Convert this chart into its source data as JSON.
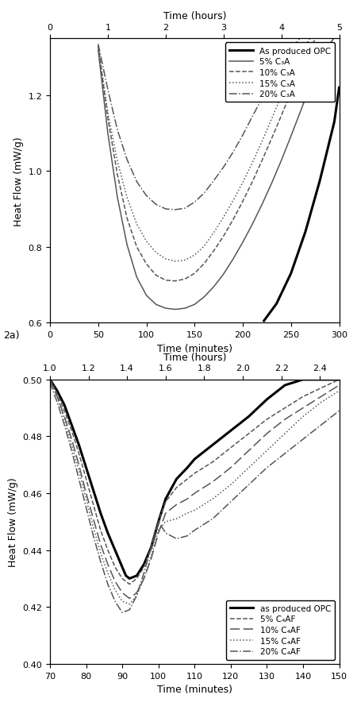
{
  "plot_a": {
    "title_top": "Time (hours)",
    "xlabel": "Time (minutes)",
    "ylabel": "Heat Flow (mW/g)",
    "xlim": [
      0,
      300
    ],
    "ylim": [
      0.6,
      1.35
    ],
    "xticks_bottom": [
      0,
      50,
      100,
      150,
      200,
      250,
      300
    ],
    "xticks_top": [
      0,
      1,
      2,
      3,
      4,
      5
    ],
    "yticks": [
      0.6,
      0.8,
      1.0,
      1.2
    ],
    "curves": [
      {
        "label": "As produced OPC",
        "color": "black",
        "lw": 2.2,
        "ls": "-",
        "x": [
          222,
          235,
          250,
          265,
          280,
          295,
          300
        ],
        "y": [
          0.605,
          0.65,
          0.73,
          0.84,
          0.975,
          1.13,
          1.22
        ]
      },
      {
        "label": "5% C₃A",
        "color": "#555555",
        "lw": 1.1,
        "ls": "-",
        "x": [
          50,
          60,
          70,
          80,
          90,
          100,
          110,
          120,
          130,
          140,
          150,
          160,
          170,
          180,
          190,
          200,
          210,
          220,
          230,
          240,
          250,
          260,
          270,
          280,
          290,
          300
        ],
        "y": [
          1.32,
          1.1,
          0.93,
          0.805,
          0.72,
          0.672,
          0.648,
          0.638,
          0.635,
          0.638,
          0.648,
          0.668,
          0.695,
          0.728,
          0.768,
          0.812,
          0.86,
          0.912,
          0.968,
          1.028,
          1.092,
          1.158,
          1.225,
          1.288,
          1.335,
          1.368
        ]
      },
      {
        "label": "10% C₃A",
        "color": "#555555",
        "lw": 1.1,
        "ls": "--",
        "x": [
          50,
          60,
          70,
          80,
          90,
          100,
          110,
          120,
          130,
          140,
          150,
          160,
          170,
          180,
          190,
          200,
          210,
          220,
          230,
          240,
          250,
          260,
          270,
          280,
          290,
          300
        ],
        "y": [
          1.33,
          1.14,
          0.99,
          0.875,
          0.8,
          0.755,
          0.725,
          0.712,
          0.71,
          0.715,
          0.73,
          0.756,
          0.79,
          0.828,
          0.872,
          0.92,
          0.972,
          1.028,
          1.086,
          1.146,
          1.208,
          1.268,
          1.325,
          1.368,
          1.375,
          1.375
        ]
      },
      {
        "label": "15% C₃A",
        "color": "#555555",
        "lw": 1.1,
        "ls": ":",
        "x": [
          50,
          60,
          70,
          80,
          90,
          100,
          110,
          120,
          130,
          140,
          150,
          160,
          170,
          180,
          190,
          200,
          210,
          220,
          230,
          240,
          250,
          260,
          270,
          280,
          290,
          300
        ],
        "y": [
          1.33,
          1.155,
          1.025,
          0.93,
          0.86,
          0.815,
          0.785,
          0.768,
          0.762,
          0.765,
          0.778,
          0.802,
          0.838,
          0.878,
          0.922,
          0.97,
          1.022,
          1.078,
          1.138,
          1.198,
          1.256,
          1.308,
          1.352,
          1.37,
          1.375,
          1.375
        ]
      },
      {
        "label": "20% C₃A",
        "color": "#555555",
        "lw": 1.1,
        "ls": "-.",
        "x": [
          50,
          60,
          70,
          80,
          90,
          100,
          110,
          120,
          130,
          140,
          150,
          160,
          170,
          180,
          190,
          200,
          210,
          220,
          230,
          240,
          250,
          260,
          270,
          280,
          290,
          300
        ],
        "y": [
          1.335,
          1.215,
          1.108,
          1.03,
          0.972,
          0.935,
          0.912,
          0.9,
          0.898,
          0.902,
          0.918,
          0.942,
          0.975,
          1.01,
          1.05,
          1.095,
          1.144,
          1.192,
          1.24,
          1.284,
          1.322,
          1.352,
          1.368,
          1.375,
          1.375,
          1.375
        ]
      }
    ],
    "legend": {
      "entries": [
        {
          "label": "As produced OPC",
          "color": "black",
          "lw": 2.2,
          "ls": "-",
          "ls_tuple": null
        },
        {
          "label": "5% C₃A",
          "color": "#555555",
          "lw": 1.1,
          "ls": "-",
          "ls_tuple": null
        },
        {
          "label": "10% C₃A",
          "color": "#555555",
          "lw": 1.1,
          "ls": "--",
          "ls_tuple": null
        },
        {
          "label": "15% C₃A",
          "color": "#555555",
          "lw": 1.1,
          "ls": ":",
          "ls_tuple": null
        },
        {
          "label": "20% C₃A",
          "color": "#555555",
          "lw": 1.1,
          "ls": "-.",
          "ls_tuple": null
        }
      ]
    }
  },
  "plot_b": {
    "title_top": "Time (hours)",
    "xlabel": "Time (minutes)",
    "ylabel": "Heat Flow (mW/g)",
    "xlim": [
      70,
      150
    ],
    "ylim": [
      0.4,
      0.5
    ],
    "xticks_bottom": [
      70,
      80,
      90,
      100,
      110,
      120,
      130,
      140,
      150
    ],
    "xticks_top_vals": [
      1.0,
      1.2,
      1.4,
      1.6,
      1.8,
      2.0,
      2.2,
      2.4
    ],
    "yticks": [
      0.4,
      0.42,
      0.44,
      0.46,
      0.48,
      0.5
    ],
    "curves": [
      {
        "label": "as produced OPC",
        "color": "black",
        "lw": 2.2,
        "ls": "-",
        "x": [
          70,
          72,
          74,
          76,
          78,
          80,
          82,
          84,
          86,
          88,
          90,
          91,
          92,
          94,
          96,
          98,
          100,
          102,
          105,
          108,
          110,
          115,
          120,
          125,
          130,
          135,
          140,
          145,
          150
        ],
        "y": [
          0.5,
          0.496,
          0.491,
          0.484,
          0.477,
          0.469,
          0.461,
          0.453,
          0.446,
          0.44,
          0.434,
          0.431,
          0.43,
          0.431,
          0.435,
          0.441,
          0.45,
          0.458,
          0.465,
          0.469,
          0.472,
          0.477,
          0.482,
          0.487,
          0.493,
          0.498,
          0.5,
          0.5,
          0.5
        ]
      },
      {
        "label": "5% C₄AF",
        "color": "#555555",
        "lw": 1.1,
        "ls": "--",
        "x": [
          70,
          72,
          74,
          76,
          78,
          80,
          82,
          84,
          86,
          88,
          90,
          92,
          94,
          96,
          98,
          100,
          102,
          105,
          108,
          110,
          115,
          120,
          125,
          130,
          135,
          140,
          145,
          150
        ],
        "y": [
          0.5,
          0.495,
          0.489,
          0.482,
          0.474,
          0.465,
          0.456,
          0.447,
          0.44,
          0.434,
          0.43,
          0.428,
          0.43,
          0.434,
          0.441,
          0.45,
          0.457,
          0.462,
          0.465,
          0.467,
          0.471,
          0.476,
          0.481,
          0.486,
          0.49,
          0.494,
          0.497,
          0.5
        ]
      },
      {
        "label": "10% C₄AF",
        "color": "#555555",
        "lw": 1.1,
        "ls": "--",
        "x": [
          70,
          72,
          74,
          76,
          78,
          80,
          82,
          84,
          86,
          88,
          90,
          92,
          94,
          96,
          98,
          100,
          102,
          105,
          108,
          110,
          115,
          120,
          125,
          130,
          135,
          140,
          145,
          150
        ],
        "y": [
          0.5,
          0.494,
          0.487,
          0.479,
          0.47,
          0.46,
          0.451,
          0.442,
          0.435,
          0.429,
          0.425,
          0.423,
          0.425,
          0.43,
          0.437,
          0.446,
          0.453,
          0.456,
          0.458,
          0.46,
          0.464,
          0.469,
          0.475,
          0.481,
          0.486,
          0.49,
          0.494,
          0.498
        ]
      },
      {
        "label": "15% C₄AF",
        "color": "#555555",
        "lw": 1.1,
        "ls": ":",
        "x": [
          70,
          72,
          74,
          76,
          78,
          80,
          82,
          84,
          86,
          88,
          90,
          92,
          94,
          96,
          98,
          100,
          102,
          105,
          108,
          110,
          115,
          120,
          125,
          130,
          135,
          140,
          145,
          150
        ],
        "y": [
          0.5,
          0.494,
          0.486,
          0.477,
          0.468,
          0.458,
          0.448,
          0.439,
          0.432,
          0.426,
          0.422,
          0.421,
          0.424,
          0.43,
          0.438,
          0.447,
          0.45,
          0.451,
          0.453,
          0.454,
          0.458,
          0.463,
          0.469,
          0.475,
          0.481,
          0.487,
          0.492,
          0.496
        ]
      },
      {
        "label": "20% C₄AF",
        "color": "#555555",
        "lw": 1.1,
        "ls": "-.",
        "x": [
          70,
          72,
          74,
          76,
          78,
          80,
          82,
          84,
          86,
          88,
          90,
          92,
          94,
          96,
          98,
          100,
          102,
          105,
          108,
          110,
          115,
          120,
          125,
          130,
          135,
          140,
          145,
          150
        ],
        "y": [
          0.499,
          0.492,
          0.484,
          0.475,
          0.465,
          0.455,
          0.445,
          0.436,
          0.428,
          0.422,
          0.418,
          0.419,
          0.424,
          0.432,
          0.441,
          0.45,
          0.446,
          0.444,
          0.445,
          0.447,
          0.451,
          0.457,
          0.463,
          0.469,
          0.474,
          0.479,
          0.484,
          0.489
        ]
      }
    ],
    "legend": {
      "entries": [
        {
          "label": "as produced OPC",
          "color": "black",
          "lw": 2.2,
          "ls": "-",
          "ls_tuple": null
        },
        {
          "label": "5% C₄AF",
          "color": "#555555",
          "lw": 1.1,
          "ls": "--",
          "ls_tuple": null
        },
        {
          "label": "10% C₄AF",
          "color": "#555555",
          "lw": 1.1,
          "ls": "--",
          "ls_tuple": [
            0,
            [
              8,
              3
            ]
          ]
        },
        {
          "label": "15% C₄AF",
          "color": "#555555",
          "lw": 1.1,
          "ls": ":",
          "ls_tuple": null
        },
        {
          "label": "20% C₄AF",
          "color": "#555555",
          "lw": 1.1,
          "ls": "-.",
          "ls_tuple": null
        }
      ]
    }
  }
}
